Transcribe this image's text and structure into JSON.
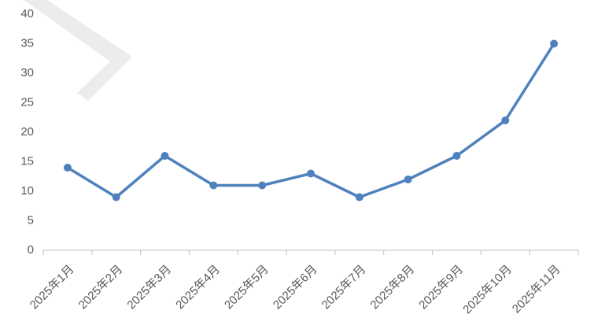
{
  "chart_data": {
    "type": "line",
    "categories": [
      "2025年1月",
      "2025年2月",
      "2025年3月",
      "2025年4月",
      "2025年5月",
      "2025年6月",
      "2025年7月",
      "2025年8月",
      "2025年9月",
      "2025年10月",
      "2025年11月"
    ],
    "values": [
      14,
      9,
      16,
      11,
      11,
      13,
      9,
      12,
      16,
      22,
      35
    ],
    "color": "#4f81bd",
    "ylim": [
      0,
      40
    ],
    "yticks": [
      0,
      5,
      10,
      15,
      20,
      25,
      30,
      35,
      40
    ],
    "grid": false
  }
}
